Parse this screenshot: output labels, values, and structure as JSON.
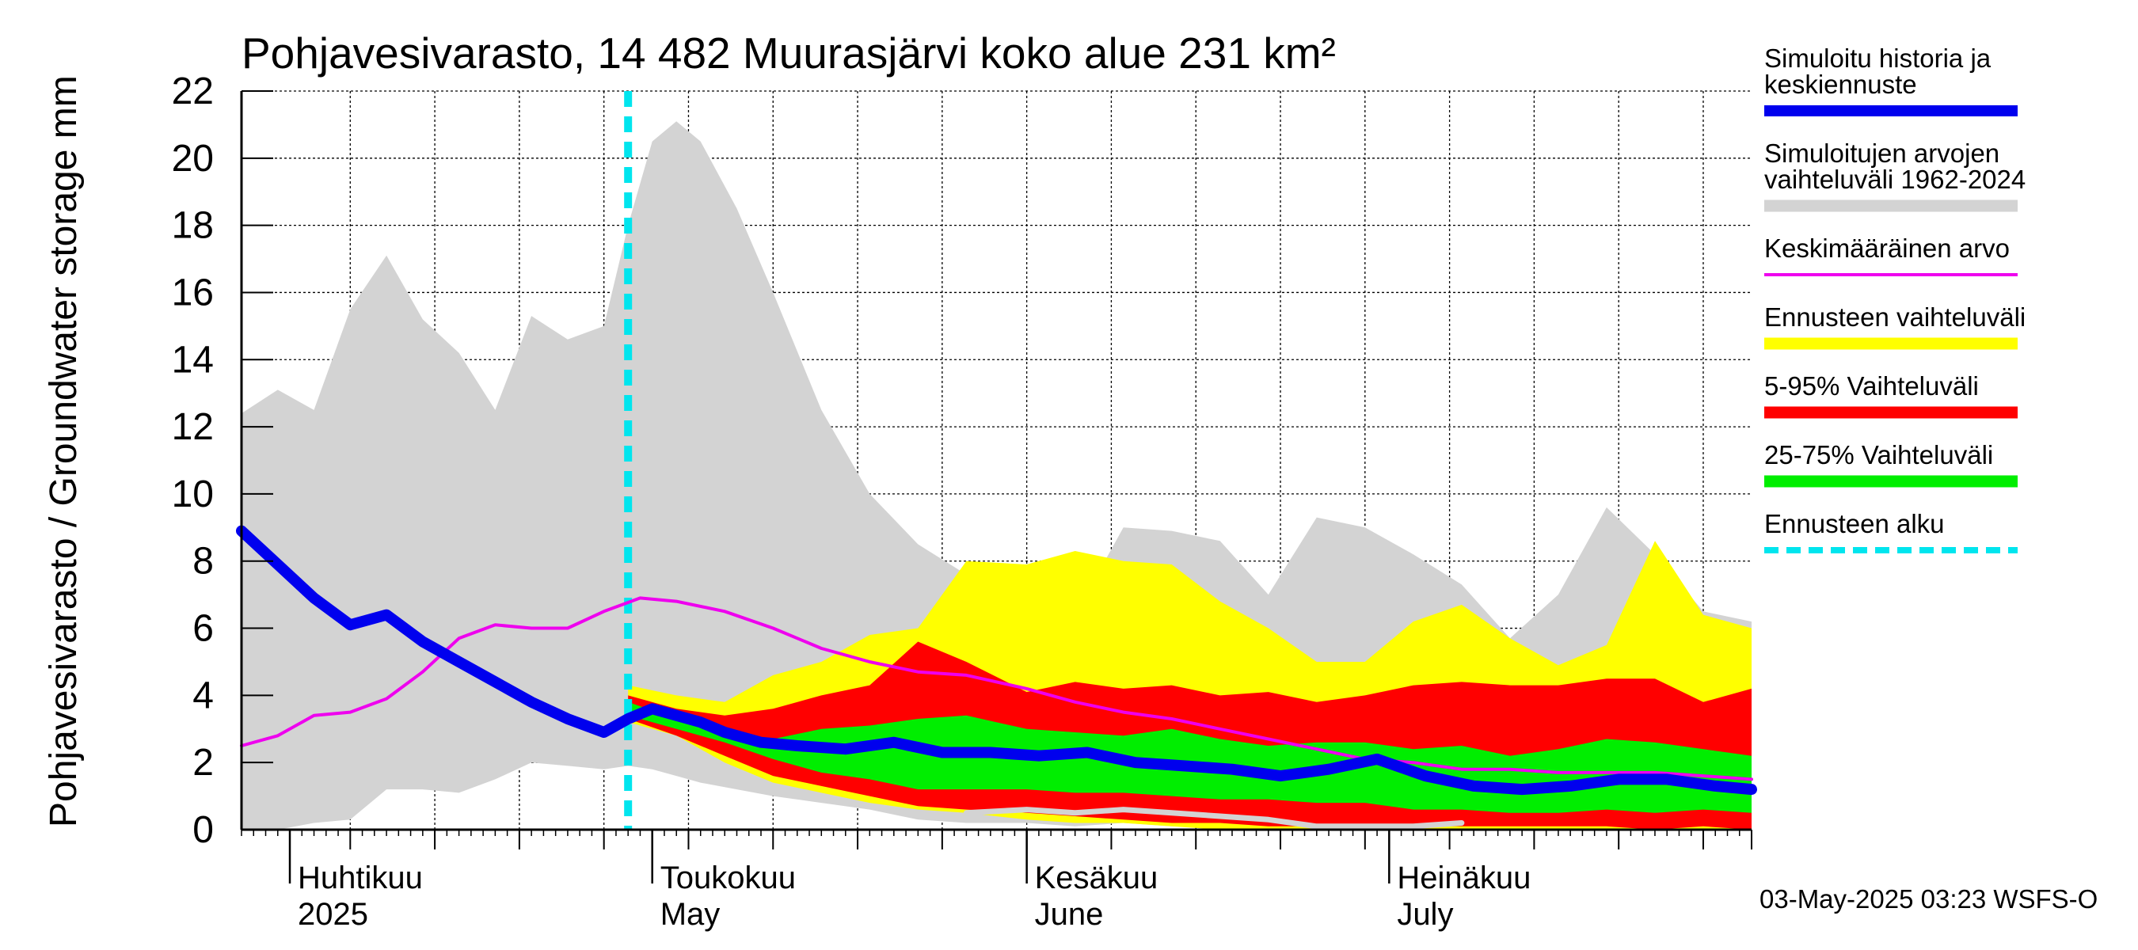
{
  "chart_data": {
    "type": "area",
    "title": "Pohjavesivarasto, 14 482 Muurasjärvi koko alue 231 km²",
    "ylabel": "Pohjavesivarasto / Groundwater storage   mm",
    "ylim": [
      0,
      22
    ],
    "yticks": [
      "0",
      "2",
      "4",
      "6",
      "8",
      "10",
      "12",
      "14",
      "16",
      "18",
      "20",
      "22"
    ],
    "x_start": "2025-03-28",
    "x_end": "2025-07-31",
    "forecast_start": "2025-04-29",
    "month_labels": [
      {
        "date": "2025-04-01",
        "line1": "Huhtikuu",
        "line2": "2025"
      },
      {
        "date": "2025-05-01",
        "line1": "Toukokuu",
        "line2": "May"
      },
      {
        "date": "2025-06-01",
        "line1": "Kesäkuu",
        "line2": "June"
      },
      {
        "date": "2025-07-01",
        "line1": "Heinäkuu",
        "line2": "July"
      }
    ],
    "grid": true,
    "legend_placement": "right",
    "legend": [
      {
        "label_line1": "Simuloitu historia ja",
        "label_line2": "keskiennuste",
        "color": "#0000ee",
        "style": "thick-line"
      },
      {
        "label_line1": "Simuloitujen arvojen",
        "label_line2": "vaihteluväli 1962-2024",
        "color": "#d3d3d3",
        "style": "band"
      },
      {
        "label_line1": "Keskimääräinen arvo",
        "label_line2": "",
        "color": "#ee00ee",
        "style": "line"
      },
      {
        "label_line1": "Ennusteen vaihteluväli",
        "label_line2": "",
        "color": "#ffff00",
        "style": "band"
      },
      {
        "label_line1": "5-95% Vaihteluväli",
        "label_line2": "",
        "color": "#ff0000",
        "style": "band"
      },
      {
        "label_line1": "25-75% Vaihteluväli",
        "label_line2": "",
        "color": "#00ee00",
        "style": "band"
      },
      {
        "label_line1": "Ennusteen alku",
        "label_line2": "",
        "color": "#00e5ee",
        "style": "dashed"
      }
    ],
    "footer": "03-May-2025 03:23 WSFS-O",
    "series": [
      {
        "name": "Simuloitujen arvojen vaihteluväli 1962-2024",
        "color": "#d3d3d3",
        "x": [
          "2025-03-28",
          "2025-03-31",
          "2025-04-03",
          "2025-04-06",
          "2025-04-09",
          "2025-04-12",
          "2025-04-15",
          "2025-04-18",
          "2025-04-21",
          "2025-04-24",
          "2025-04-27",
          "2025-04-29",
          "2025-05-01",
          "2025-05-03",
          "2025-05-05",
          "2025-05-08",
          "2025-05-11",
          "2025-05-15",
          "2025-05-19",
          "2025-05-23",
          "2025-05-27",
          "2025-06-01",
          "2025-06-05",
          "2025-06-09",
          "2025-06-13",
          "2025-06-17",
          "2025-06-21",
          "2025-06-25",
          "2025-06-29",
          "2025-07-03",
          "2025-07-07",
          "2025-07-11",
          "2025-07-15",
          "2025-07-19",
          "2025-07-23",
          "2025-07-27",
          "2025-07-31"
        ],
        "high": [
          12.4,
          13.1,
          12.5,
          15.5,
          17.1,
          15.2,
          14.2,
          12.5,
          15.3,
          14.6,
          15.0,
          18.0,
          20.5,
          21.1,
          20.5,
          18.5,
          16.0,
          12.5,
          10.0,
          8.5,
          7.6,
          7.7,
          6.4,
          9.0,
          8.9,
          8.6,
          7.0,
          9.3,
          9.0,
          8.2,
          7.3,
          5.7,
          7.0,
          9.6,
          8.2,
          6.5,
          6.2
        ],
        "low": [
          0.0,
          0.0,
          0.2,
          0.3,
          1.2,
          1.2,
          1.1,
          1.5,
          2.0,
          1.9,
          1.8,
          1.9,
          1.8,
          1.6,
          1.4,
          1.2,
          1.0,
          0.8,
          0.6,
          0.3,
          0.2,
          0.2,
          0.1,
          0.2,
          0.1,
          0.1,
          0.0,
          0.1,
          0.0,
          0.0,
          0.0,
          0.0,
          0.0,
          0.0,
          0.0,
          0.0,
          0.0
        ]
      },
      {
        "name": "Ennusteen vaihteluväli",
        "color": "#ffff00",
        "x": [
          "2025-04-29",
          "2025-05-03",
          "2025-05-07",
          "2025-05-11",
          "2025-05-15",
          "2025-05-19",
          "2025-05-23",
          "2025-05-27",
          "2025-06-01",
          "2025-06-05",
          "2025-06-09",
          "2025-06-13",
          "2025-06-17",
          "2025-06-21",
          "2025-06-25",
          "2025-06-29",
          "2025-07-03",
          "2025-07-07",
          "2025-07-11",
          "2025-07-15",
          "2025-07-19",
          "2025-07-23",
          "2025-07-27",
          "2025-07-31"
        ],
        "high": [
          4.3,
          4.0,
          3.8,
          4.6,
          5.0,
          5.8,
          6.0,
          8.0,
          7.9,
          8.3,
          8.0,
          7.9,
          6.8,
          6.0,
          5.0,
          5.0,
          6.2,
          6.7,
          5.7,
          4.9,
          5.5,
          8.6,
          6.4,
          6.0
        ],
        "low": [
          3.2,
          2.8,
          2.0,
          1.4,
          1.1,
          0.8,
          0.6,
          0.5,
          0.3,
          0.2,
          0.2,
          0.1,
          0.0,
          0.0,
          0.0,
          0.0,
          0.0,
          0.0,
          0.0,
          0.0,
          0.0,
          0.0,
          0.0,
          0.0
        ]
      },
      {
        "name": "5-95% Vaihteluväli",
        "color": "#ff0000",
        "x": [
          "2025-04-29",
          "2025-05-03",
          "2025-05-07",
          "2025-05-11",
          "2025-05-15",
          "2025-05-19",
          "2025-05-23",
          "2025-05-27",
          "2025-06-01",
          "2025-06-05",
          "2025-06-09",
          "2025-06-13",
          "2025-06-17",
          "2025-06-21",
          "2025-06-25",
          "2025-06-29",
          "2025-07-03",
          "2025-07-07",
          "2025-07-11",
          "2025-07-15",
          "2025-07-19",
          "2025-07-23",
          "2025-07-27",
          "2025-07-31"
        ],
        "high": [
          4.0,
          3.6,
          3.4,
          3.6,
          4.0,
          4.3,
          5.6,
          5.0,
          4.1,
          4.4,
          4.2,
          4.3,
          4.0,
          4.1,
          3.8,
          4.0,
          4.3,
          4.4,
          4.3,
          4.3,
          4.5,
          4.5,
          3.8,
          4.2
        ],
        "low": [
          3.3,
          2.8,
          2.2,
          1.6,
          1.3,
          1.0,
          0.7,
          0.6,
          0.5,
          0.4,
          0.3,
          0.2,
          0.2,
          0.1,
          0.1,
          0.1,
          0.1,
          0.1,
          0.1,
          0.1,
          0.1,
          0.0,
          0.1,
          0.0
        ]
      },
      {
        "name": "25-75% Vaihteluväli",
        "color": "#00ee00",
        "x": [
          "2025-04-29",
          "2025-05-03",
          "2025-05-07",
          "2025-05-11",
          "2025-05-15",
          "2025-05-19",
          "2025-05-23",
          "2025-05-27",
          "2025-06-01",
          "2025-06-05",
          "2025-06-09",
          "2025-06-13",
          "2025-06-17",
          "2025-06-21",
          "2025-06-25",
          "2025-06-29",
          "2025-07-03",
          "2025-07-07",
          "2025-07-11",
          "2025-07-15",
          "2025-07-19",
          "2025-07-23",
          "2025-07-27",
          "2025-07-31"
        ],
        "high": [
          3.8,
          3.3,
          2.9,
          2.7,
          3.0,
          3.1,
          3.3,
          3.4,
          3.0,
          2.9,
          2.8,
          3.0,
          2.7,
          2.5,
          2.6,
          2.6,
          2.4,
          2.5,
          2.2,
          2.4,
          2.7,
          2.6,
          2.4,
          2.2
        ],
        "low": [
          3.4,
          3.0,
          2.6,
          2.1,
          1.7,
          1.5,
          1.2,
          1.2,
          1.2,
          1.1,
          1.1,
          1.0,
          0.9,
          0.9,
          0.8,
          0.8,
          0.6,
          0.6,
          0.5,
          0.5,
          0.6,
          0.5,
          0.6,
          0.5
        ]
      },
      {
        "name": "Keskimääräinen arvo",
        "color": "#ee00ee",
        "x": [
          "2025-03-28",
          "2025-03-31",
          "2025-04-03",
          "2025-04-06",
          "2025-04-09",
          "2025-04-12",
          "2025-04-15",
          "2025-04-18",
          "2025-04-21",
          "2025-04-24",
          "2025-04-27",
          "2025-04-30",
          "2025-05-03",
          "2025-05-07",
          "2025-05-11",
          "2025-05-15",
          "2025-05-19",
          "2025-05-23",
          "2025-05-27",
          "2025-06-01",
          "2025-06-05",
          "2025-06-09",
          "2025-06-13",
          "2025-06-17",
          "2025-06-21",
          "2025-06-25",
          "2025-06-29",
          "2025-07-03",
          "2025-07-07",
          "2025-07-11",
          "2025-07-15",
          "2025-07-19",
          "2025-07-23",
          "2025-07-27",
          "2025-07-31"
        ],
        "y": [
          2.5,
          2.8,
          3.4,
          3.5,
          3.9,
          4.7,
          5.7,
          6.1,
          6.0,
          6.0,
          6.5,
          6.9,
          6.8,
          6.5,
          6.0,
          5.4,
          5.0,
          4.7,
          4.6,
          4.2,
          3.8,
          3.5,
          3.3,
          3.0,
          2.7,
          2.4,
          2.1,
          2.0,
          1.8,
          1.8,
          1.7,
          1.7,
          1.7,
          1.6,
          1.5
        ]
      },
      {
        "name": "Simuloitu historia ja keskiennuste",
        "color": "#0000ee",
        "x": [
          "2025-03-28",
          "2025-03-31",
          "2025-04-03",
          "2025-04-06",
          "2025-04-09",
          "2025-04-12",
          "2025-04-15",
          "2025-04-18",
          "2025-04-21",
          "2025-04-24",
          "2025-04-27",
          "2025-04-29",
          "2025-05-01",
          "2025-05-03",
          "2025-05-05",
          "2025-05-07",
          "2025-05-10",
          "2025-05-13",
          "2025-05-17",
          "2025-05-21",
          "2025-05-25",
          "2025-05-29",
          "2025-06-02",
          "2025-06-06",
          "2025-06-10",
          "2025-06-14",
          "2025-06-18",
          "2025-06-22",
          "2025-06-26",
          "2025-06-30",
          "2025-07-04",
          "2025-07-08",
          "2025-07-12",
          "2025-07-16",
          "2025-07-20",
          "2025-07-24",
          "2025-07-28",
          "2025-07-31"
        ],
        "y": [
          8.9,
          7.9,
          6.9,
          6.1,
          6.4,
          5.6,
          5.0,
          4.4,
          3.8,
          3.3,
          2.9,
          3.3,
          3.6,
          3.4,
          3.2,
          2.9,
          2.6,
          2.5,
          2.4,
          2.6,
          2.3,
          2.3,
          2.2,
          2.3,
          2.0,
          1.9,
          1.8,
          1.6,
          1.8,
          2.1,
          1.6,
          1.3,
          1.2,
          1.3,
          1.5,
          1.5,
          1.3,
          1.2
        ]
      },
      {
        "name": "Ennusteen min",
        "color": "#d3d3d3",
        "x": [
          "2025-05-27",
          "2025-06-01",
          "2025-06-05",
          "2025-06-09",
          "2025-06-13",
          "2025-06-17",
          "2025-06-21",
          "2025-06-25",
          "2025-06-29",
          "2025-07-03",
          "2025-07-07"
        ],
        "y": [
          0.5,
          0.6,
          0.5,
          0.6,
          0.5,
          0.4,
          0.3,
          0.1,
          0.1,
          0.1,
          0.2
        ]
      }
    ]
  }
}
